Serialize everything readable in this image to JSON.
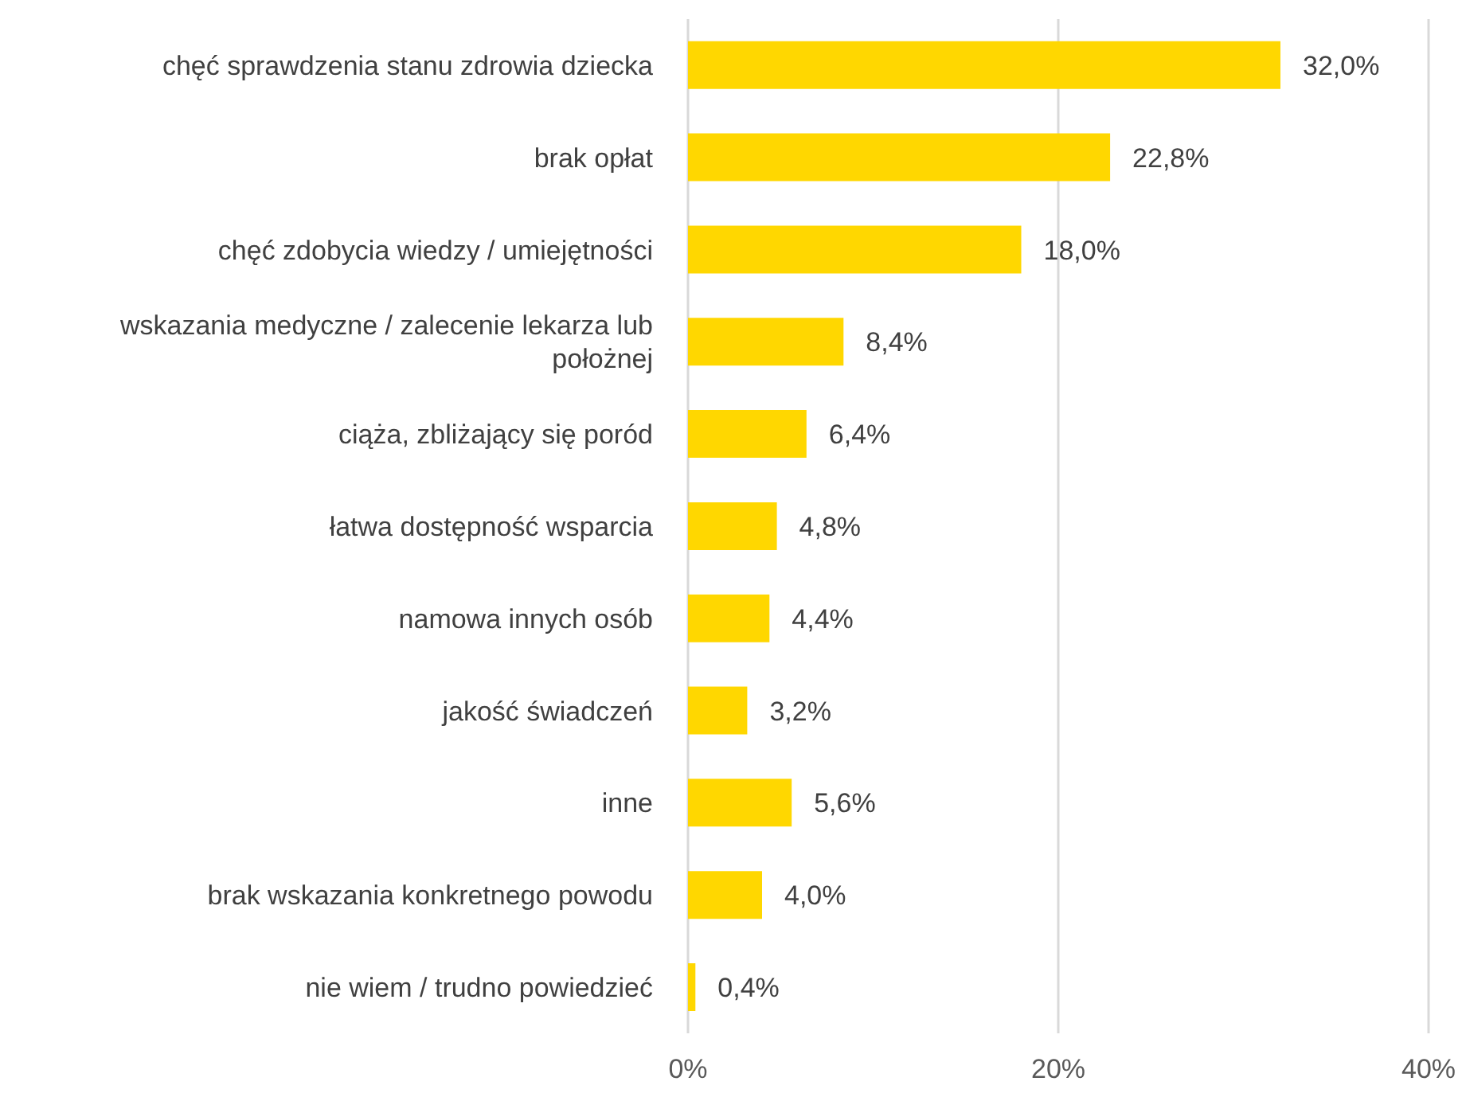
{
  "chart_data": {
    "type": "bar",
    "orientation": "horizontal",
    "categories": [
      "chęć sprawdzenia stanu zdrowia dziecka",
      "brak opłat",
      "chęć zdobycia wiedzy / umiejętności",
      "wskazania medyczne / zalecenie lekarza lub położnej",
      "ciąża, zbliżający się poród",
      "łatwa dostępność wsparcia",
      "namowa innych osób",
      "jakość świadczeń",
      "inne",
      "brak wskazania konkretnego powodu",
      "nie wiem / trudno powiedzieć"
    ],
    "values": [
      32.0,
      22.8,
      18.0,
      8.4,
      6.4,
      4.8,
      4.4,
      3.2,
      5.6,
      4.0,
      0.4
    ],
    "value_labels": [
      "32,0%",
      "22,8%",
      "18,0%",
      "8,4%",
      "6,4%",
      "4,8%",
      "4,4%",
      "3,2%",
      "5,6%",
      "4,0%",
      "0,4%"
    ],
    "color": "#ffd700",
    "xlim": [
      0,
      40
    ],
    "xticks": [
      {
        "value": 0,
        "label": "0%"
      },
      {
        "value": 20,
        "label": "20%"
      },
      {
        "value": 40,
        "label": "40%"
      }
    ],
    "grid": "x",
    "legend": false
  }
}
